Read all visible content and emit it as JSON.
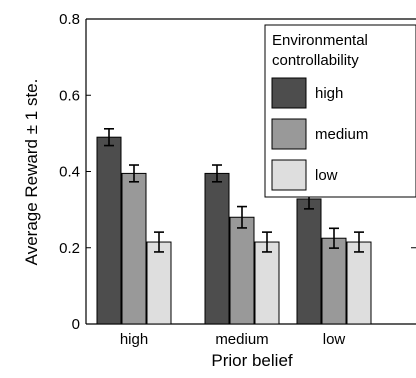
{
  "chart_data": {
    "type": "bar",
    "title": "",
    "xlabel": "Prior belief",
    "ylabel": "Average Reward ± 1 ste.",
    "categories": [
      "high",
      "medium",
      "low"
    ],
    "ylim": [
      0,
      0.8
    ],
    "yticks": [
      "0",
      "0.2",
      "0.4",
      "0.6",
      "0.8"
    ],
    "ytick_values": [
      0,
      0.2,
      0.4,
      0.6,
      0.8
    ],
    "grid": false,
    "legend": {
      "title": [
        "Environmental",
        "controllability"
      ],
      "placement": "top-right"
    },
    "series": [
      {
        "name": "high",
        "color": "#4d4d4d",
        "values": [
          0.49,
          0.395,
          0.328
        ],
        "errors": [
          0.022,
          0.022,
          0.026
        ]
      },
      {
        "name": "medium",
        "color": "#999999",
        "values": [
          0.395,
          0.28,
          0.225
        ],
        "errors": [
          0.022,
          0.028,
          0.026
        ]
      },
      {
        "name": "low",
        "color": "#dedede",
        "values": [
          0.215,
          0.215,
          0.215
        ],
        "errors": [
          0.026,
          0.026,
          0.026
        ]
      }
    ]
  }
}
